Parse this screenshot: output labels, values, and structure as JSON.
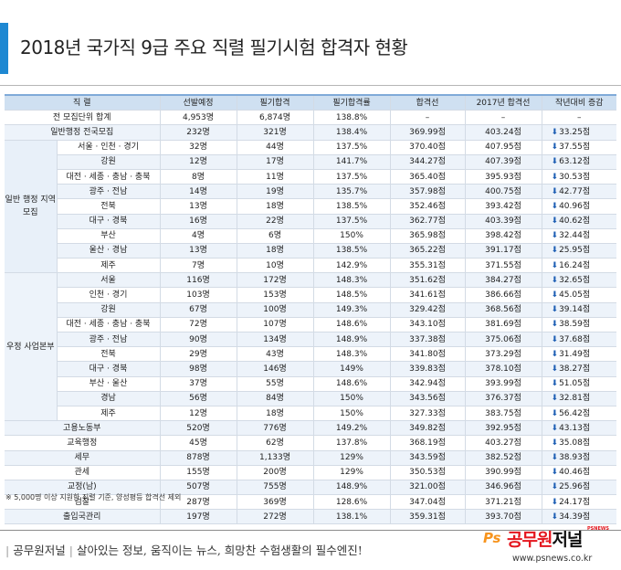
{
  "title": "2018년 국가직 9급 주요 직렬 필기시험 합격자 현황",
  "table": {
    "headers": [
      "직 렬",
      "선발예정",
      "필기합격",
      "필기합격률",
      "합격선",
      "2017년 합격선",
      "작년대비 증감"
    ],
    "groups": {
      "local": "일반 행정 지역 모집",
      "post": "우정 사업본부"
    },
    "rows": [
      {
        "name": "전 모집단위 합계",
        "sel": "4,953명",
        "pass": "6,874명",
        "rate": "138.8%",
        "cut": "–",
        "cut17": "–",
        "chg": "–"
      },
      {
        "name": "일반행정 전국모집",
        "sel": "232명",
        "pass": "321명",
        "rate": "138.4%",
        "cut": "369.99점",
        "cut17": "403.24점",
        "chg": "33.25점"
      },
      {
        "name": "서울 · 인천 · 경기",
        "sel": "32명",
        "pass": "44명",
        "rate": "137.5%",
        "cut": "370.40점",
        "cut17": "407.95점",
        "chg": "37.55점"
      },
      {
        "name": "강원",
        "sel": "12명",
        "pass": "17명",
        "rate": "141.7%",
        "cut": "344.27점",
        "cut17": "407.39점",
        "chg": "63.12점"
      },
      {
        "name": "대전 · 세종 · 충남 · 충북",
        "sel": "8명",
        "pass": "11명",
        "rate": "137.5%",
        "cut": "365.40점",
        "cut17": "395.93점",
        "chg": "30.53점"
      },
      {
        "name": "광주 · 전남",
        "sel": "14명",
        "pass": "19명",
        "rate": "135.7%",
        "cut": "357.98점",
        "cut17": "400.75점",
        "chg": "42.77점"
      },
      {
        "name": "전북",
        "sel": "13명",
        "pass": "18명",
        "rate": "138.5%",
        "cut": "352.46점",
        "cut17": "393.42점",
        "chg": "40.96점"
      },
      {
        "name": "대구 · 경북",
        "sel": "16명",
        "pass": "22명",
        "rate": "137.5%",
        "cut": "362.77점",
        "cut17": "403.39점",
        "chg": "40.62점"
      },
      {
        "name": "부산",
        "sel": "4명",
        "pass": "6명",
        "rate": "150%",
        "cut": "365.98점",
        "cut17": "398.42점",
        "chg": "32.44점"
      },
      {
        "name": "울산 · 경남",
        "sel": "13명",
        "pass": "18명",
        "rate": "138.5%",
        "cut": "365.22점",
        "cut17": "391.17점",
        "chg": "25.95점"
      },
      {
        "name": "제주",
        "sel": "7명",
        "pass": "10명",
        "rate": "142.9%",
        "cut": "355.31점",
        "cut17": "371.55점",
        "chg": "16.24점"
      },
      {
        "name": "서울",
        "sel": "116명",
        "pass": "172명",
        "rate": "148.3%",
        "cut": "351.62점",
        "cut17": "384.27점",
        "chg": "32.65점"
      },
      {
        "name": "인천 · 경기",
        "sel": "103명",
        "pass": "153명",
        "rate": "148.5%",
        "cut": "341.61점",
        "cut17": "386.66점",
        "chg": "45.05점"
      },
      {
        "name": "강원",
        "sel": "67명",
        "pass": "100명",
        "rate": "149.3%",
        "cut": "329.42점",
        "cut17": "368.56점",
        "chg": "39.14점"
      },
      {
        "name": "대전 · 세종 · 충남 · 충북",
        "sel": "72명",
        "pass": "107명",
        "rate": "148.6%",
        "cut": "343.10점",
        "cut17": "381.69점",
        "chg": "38.59점"
      },
      {
        "name": "광주 · 전남",
        "sel": "90명",
        "pass": "134명",
        "rate": "148.9%",
        "cut": "337.38점",
        "cut17": "375.06점",
        "chg": "37.68점"
      },
      {
        "name": "전북",
        "sel": "29명",
        "pass": "43명",
        "rate": "148.3%",
        "cut": "341.80점",
        "cut17": "373.29점",
        "chg": "31.49점"
      },
      {
        "name": "대구 · 경북",
        "sel": "98명",
        "pass": "146명",
        "rate": "149%",
        "cut": "339.83점",
        "cut17": "378.10점",
        "chg": "38.27점"
      },
      {
        "name": "부산 · 울산",
        "sel": "37명",
        "pass": "55명",
        "rate": "148.6%",
        "cut": "342.94점",
        "cut17": "393.99점",
        "chg": "51.05점"
      },
      {
        "name": "경남",
        "sel": "56명",
        "pass": "84명",
        "rate": "150%",
        "cut": "343.56점",
        "cut17": "376.37점",
        "chg": "32.81점"
      },
      {
        "name": "제주",
        "sel": "12명",
        "pass": "18명",
        "rate": "150%",
        "cut": "327.33점",
        "cut17": "383.75점",
        "chg": "56.42점"
      },
      {
        "name": "고용노동부",
        "sel": "520명",
        "pass": "776명",
        "rate": "149.2%",
        "cut": "349.82점",
        "cut17": "392.95점",
        "chg": "43.13점"
      },
      {
        "name": "교육행정",
        "sel": "45명",
        "pass": "62명",
        "rate": "137.8%",
        "cut": "368.19점",
        "cut17": "403.27점",
        "chg": "35.08점"
      },
      {
        "name": "세무",
        "sel": "878명",
        "pass": "1,133명",
        "rate": "129%",
        "cut": "343.59점",
        "cut17": "382.52점",
        "chg": "38.93점"
      },
      {
        "name": "관세",
        "sel": "155명",
        "pass": "200명",
        "rate": "129%",
        "cut": "350.53점",
        "cut17": "390.99점",
        "chg": "40.46점"
      },
      {
        "name": "교정(남)",
        "sel": "507명",
        "pass": "755명",
        "rate": "148.9%",
        "cut": "321.00점",
        "cut17": "346.96점",
        "chg": "25.96점"
      },
      {
        "name": "검찰",
        "sel": "287명",
        "pass": "369명",
        "rate": "128.6%",
        "cut": "347.04점",
        "cut17": "371.21점",
        "chg": "24.17점"
      },
      {
        "name": "출입국관리",
        "sel": "197명",
        "pass": "272명",
        "rate": "138.1%",
        "cut": "359.31점",
        "cut17": "393.70점",
        "chg": "34.39점"
      }
    ]
  },
  "footnote": "※ 5,000명 이상 지원한 직렬 기준, 양성평등 합격선 제외",
  "footer": {
    "brand": "공무원저널",
    "slogan": "살아있는 정보, 움직이는 뉴스, 희망찬 수험생활의 필수엔진!",
    "logo_ps": "Ps",
    "logo_main": "공무원",
    "logo_end": "저널",
    "logo_tag": "PSNEWS",
    "url": "www.psnews.co.kr"
  },
  "colors": {
    "accent_bar": "#1e88d2",
    "header_bg": "#cfe0f1",
    "arrow": "#1e5fb4",
    "logo_red": "#e4161e",
    "logo_orange": "#f7941d"
  },
  "icons": {
    "decrease": "down-arrow-icon"
  }
}
